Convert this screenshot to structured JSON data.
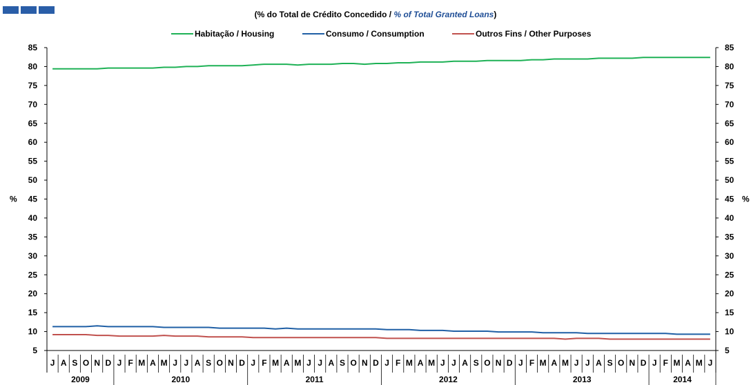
{
  "subtitle": {
    "open": "(",
    "pt": "% do Total de Crédito Concedido  / ",
    "en": "% of  Total Granted Loans",
    "close": ")"
  },
  "chart_data": {
    "type": "line",
    "legend_position": "top",
    "grid": false,
    "ylabel": "%",
    "ylim": [
      5,
      85
    ],
    "yticks": [
      5,
      10,
      15,
      20,
      25,
      30,
      35,
      40,
      45,
      50,
      55,
      60,
      65,
      70,
      75,
      80,
      85
    ],
    "x_start": "2009-07",
    "month_labels": [
      "J",
      "A",
      "S",
      "O",
      "N",
      "D",
      "J",
      "F",
      "M",
      "A",
      "M",
      "J",
      "J",
      "A",
      "S",
      "O",
      "N",
      "D",
      "J",
      "F",
      "M",
      "A",
      "M",
      "J",
      "J",
      "A",
      "S",
      "O",
      "N",
      "D",
      "J",
      "F",
      "M",
      "A",
      "M",
      "J",
      "J",
      "A",
      "S",
      "O",
      "N",
      "D",
      "J",
      "F",
      "M",
      "A",
      "M",
      "J",
      "J",
      "A",
      "S",
      "O",
      "N",
      "D",
      "J",
      "F",
      "M",
      "A",
      "M",
      "J"
    ],
    "years": [
      {
        "label": "2009",
        "months": 6
      },
      {
        "label": "2010",
        "months": 12
      },
      {
        "label": "2011",
        "months": 12
      },
      {
        "label": "2012",
        "months": 12
      },
      {
        "label": "2013",
        "months": 12
      },
      {
        "label": "2014",
        "months": 6
      }
    ],
    "series": [
      {
        "name": "Habitação / Housing",
        "color": "#1db155",
        "values": [
          79.4,
          79.4,
          79.4,
          79.4,
          79.4,
          79.6,
          79.6,
          79.6,
          79.6,
          79.6,
          79.8,
          79.8,
          80.0,
          80.0,
          80.2,
          80.2,
          80.2,
          80.2,
          80.4,
          80.6,
          80.6,
          80.6,
          80.4,
          80.6,
          80.6,
          80.6,
          80.8,
          80.8,
          80.6,
          80.8,
          80.8,
          81.0,
          81.0,
          81.2,
          81.2,
          81.2,
          81.4,
          81.4,
          81.4,
          81.6,
          81.6,
          81.6,
          81.6,
          81.8,
          81.8,
          82.0,
          82.0,
          82.0,
          82.0,
          82.2,
          82.2,
          82.2,
          82.2,
          82.4,
          82.4,
          82.4,
          82.4,
          82.4,
          82.4,
          82.4
        ]
      },
      {
        "name": "Consumo / Consumption",
        "color": "#1f5fa5",
        "values": [
          11.3,
          11.3,
          11.3,
          11.3,
          11.5,
          11.3,
          11.3,
          11.3,
          11.3,
          11.3,
          11.1,
          11.1,
          11.1,
          11.1,
          11.1,
          10.9,
          10.9,
          10.9,
          10.9,
          10.9,
          10.7,
          10.9,
          10.7,
          10.7,
          10.7,
          10.7,
          10.7,
          10.7,
          10.7,
          10.7,
          10.5,
          10.5,
          10.5,
          10.3,
          10.3,
          10.3,
          10.1,
          10.1,
          10.1,
          10.1,
          9.9,
          9.9,
          9.9,
          9.9,
          9.7,
          9.7,
          9.7,
          9.7,
          9.5,
          9.5,
          9.5,
          9.5,
          9.5,
          9.5,
          9.5,
          9.5,
          9.3,
          9.3,
          9.3,
          9.3
        ]
      },
      {
        "name": "Outros Fins / Other Purposes",
        "color": "#c0504d",
        "values": [
          9.2,
          9.2,
          9.2,
          9.2,
          9.0,
          9.0,
          8.8,
          8.8,
          8.8,
          8.8,
          9.0,
          8.8,
          8.8,
          8.8,
          8.6,
          8.6,
          8.6,
          8.6,
          8.4,
          8.4,
          8.4,
          8.4,
          8.4,
          8.4,
          8.4,
          8.4,
          8.4,
          8.4,
          8.4,
          8.4,
          8.2,
          8.2,
          8.2,
          8.2,
          8.2,
          8.2,
          8.2,
          8.2,
          8.2,
          8.2,
          8.2,
          8.2,
          8.2,
          8.2,
          8.2,
          8.2,
          8.0,
          8.2,
          8.2,
          8.2,
          8.0,
          8.0,
          8.0,
          8.0,
          8.0,
          8.0,
          8.0,
          8.0,
          8.0,
          8.0
        ]
      }
    ]
  }
}
